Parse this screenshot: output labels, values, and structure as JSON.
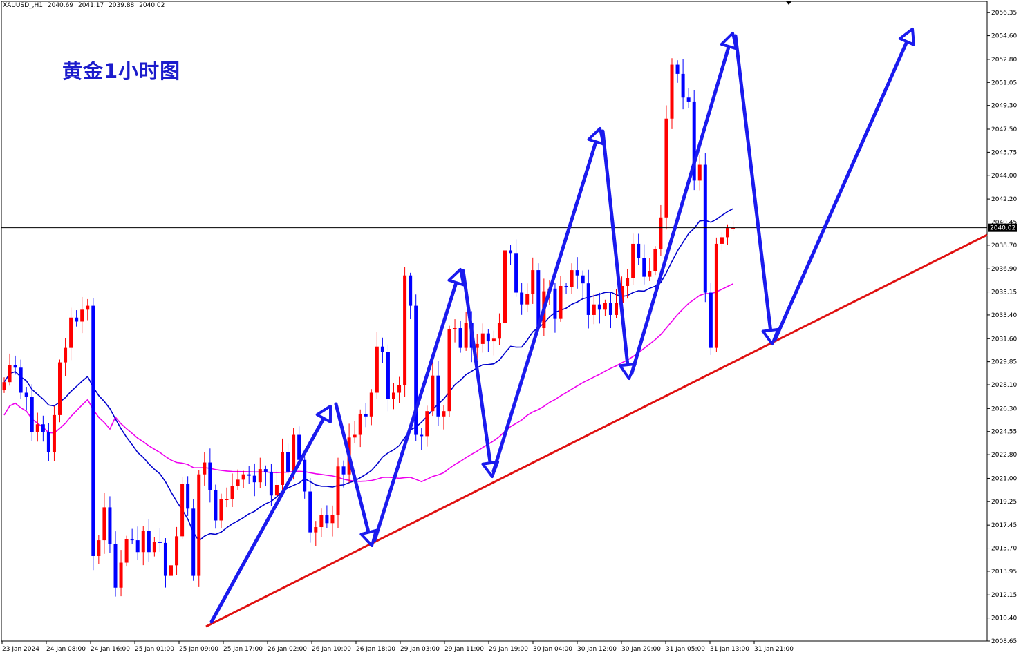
{
  "header": {
    "symbol": "XAUUSD_,H1",
    "open": "2040.69",
    "high": "2041.17",
    "low": "2039.88",
    "close": "2040.02"
  },
  "title": "黄金1小时图",
  "price_tag": "2040.02",
  "colors": {
    "bull": "#ff0000",
    "bear": "#0000ff",
    "ma_fast": "#0000cc",
    "ma_slow": "#ee00ee",
    "trendline": "#e01010",
    "arrows": "#1a1aee",
    "title": "#1c1ccc"
  },
  "chart_data": {
    "type": "candlestick",
    "ylim": [
      2008.65,
      2057.2
    ],
    "y_ticks": [
      "2056.35",
      "2054.60",
      "2052.80",
      "2051.05",
      "2049.30",
      "2047.50",
      "2045.75",
      "2044.00",
      "2042.20",
      "2040.45",
      "2038.70",
      "2036.90",
      "2035.15",
      "2033.40",
      "2031.60",
      "2029.85",
      "2028.10",
      "2026.30",
      "2024.55",
      "2022.80",
      "2021.00",
      "2019.25",
      "2017.45",
      "2015.70",
      "2013.95",
      "2012.15",
      "2010.40",
      "2008.65"
    ],
    "x_ticks": [
      "23 Jan 2024",
      "24 Jan 08:00",
      "24 Jan 16:00",
      "25 Jan 01:00",
      "25 Jan 09:00",
      "25 Jan 17:00",
      "26 Jan 02:00",
      "26 Jan 10:00",
      "26 Jan 18:00",
      "29 Jan 03:00",
      "29 Jan 11:00",
      "29 Jan 19:00",
      "30 Jan 04:00",
      "30 Jan 12:00",
      "30 Jan 20:00",
      "31 Jan 05:00",
      "31 Jan 13:00",
      "31 Jan 21:00"
    ],
    "current_price": 2040.02,
    "candle_closes": [
      2028.3,
      2029.6,
      2029.4,
      2027.5,
      2027.2,
      2024.5,
      2025.1,
      2024.5,
      2023.0,
      2025.8,
      2029.8,
      2030.9,
      2033.2,
      2032.9,
      2033.8,
      2034.1,
      2015.1,
      2016.3,
      2018.8,
      2016.0,
      2012.7,
      2014.6,
      2016.4,
      2016.3,
      2015.4,
      2017.0,
      2015.4,
      2016.2,
      2016.1,
      2013.6,
      2014.4,
      2016.6,
      2020.6,
      2018.7,
      2013.6,
      2021.3,
      2022.2,
      2020.1,
      2017.8,
      2019.4,
      2019.4,
      2020.4,
      2020.9,
      2021.3,
      2021.2,
      2020.7,
      2021.7,
      2021.5,
      2019.7,
      2020.5,
      2023.0,
      2021.5,
      2024.3,
      2022.4,
      2020.0,
      2016.9,
      2017.3,
      2018.2,
      2017.6,
      2018.2,
      2021.9,
      2021.3,
      2024.1,
      2024.3,
      2025.9,
      2025.7,
      2027.5,
      2031.0,
      2030.6,
      2027.0,
      2027.5,
      2028.1,
      2036.4,
      2034.1,
      2024.3,
      2024.2,
      2026.1,
      2028.8,
      2025.7,
      2026.1,
      2032.3,
      2032.4,
      2030.9,
      2032.8,
      2030.9,
      2031.2,
      2032.0,
      2031.4,
      2031.6,
      2032.8,
      2038.3,
      2038.1,
      2035.1,
      2034.2,
      2035.0,
      2036.8,
      2032.4,
      2035.2,
      2035.4,
      2033.1,
      2035.6,
      2035.5,
      2036.8,
      2036.4,
      2035.8,
      2033.4,
      2034.2,
      2033.8,
      2034.3,
      2033.4,
      2034.3,
      2035.6,
      2036.2,
      2038.8,
      2037.7,
      2036.3,
      2036.7,
      2038.4,
      2040.8,
      2048.3,
      2052.4,
      2051.7,
      2049.9,
      2049.6,
      2043.6,
      2044.8,
      2035.1,
      2030.9,
      2038.8,
      2039.3,
      2040.0,
      2040.0
    ]
  }
}
